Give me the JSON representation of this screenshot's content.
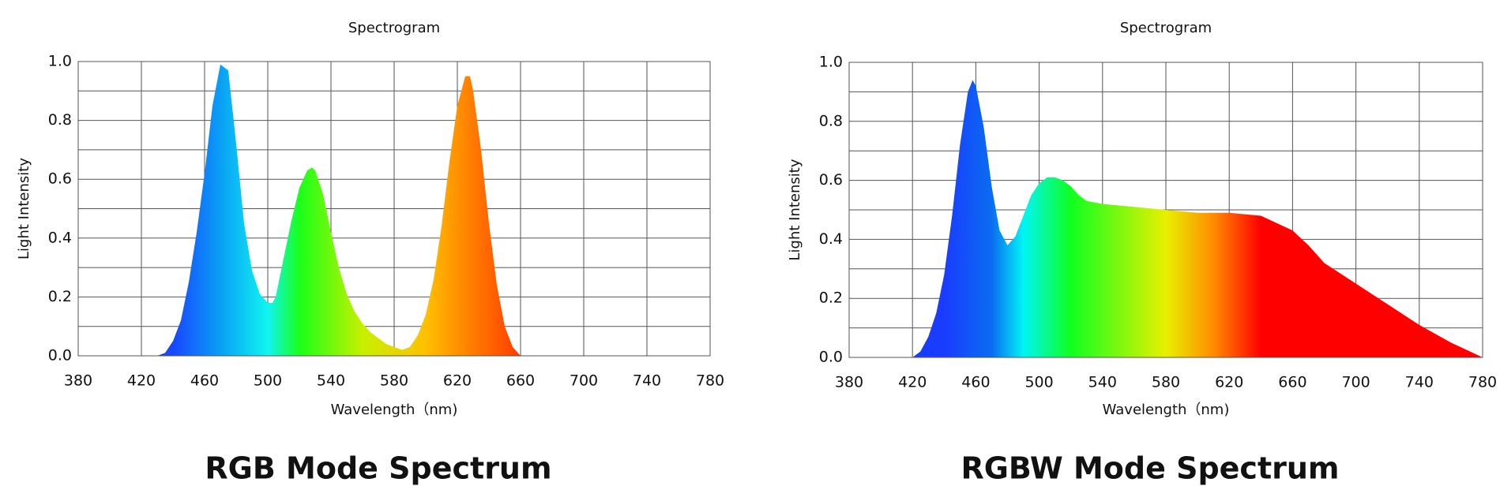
{
  "chart_data": [
    {
      "type": "area",
      "title": "Spectrogram",
      "x_label": "Wavelength（nm)",
      "y_label": "Light Intensity",
      "caption": "RGB Mode Spectrum",
      "x": [
        380,
        430,
        435,
        440,
        445,
        450,
        455,
        460,
        465,
        470,
        475,
        480,
        485,
        490,
        495,
        500,
        503,
        505,
        510,
        515,
        520,
        525,
        528,
        530,
        535,
        540,
        545,
        550,
        555,
        560,
        565,
        570,
        575,
        580,
        585,
        590,
        595,
        600,
        605,
        610,
        615,
        620,
        625,
        628,
        630,
        635,
        640,
        645,
        650,
        655,
        660
      ],
      "values": [
        0,
        0,
        0.01,
        0.05,
        0.12,
        0.25,
        0.42,
        0.62,
        0.85,
        0.99,
        0.97,
        0.72,
        0.45,
        0.29,
        0.21,
        0.18,
        0.18,
        0.2,
        0.33,
        0.46,
        0.57,
        0.63,
        0.64,
        0.63,
        0.55,
        0.42,
        0.3,
        0.21,
        0.15,
        0.11,
        0.08,
        0.06,
        0.04,
        0.03,
        0.02,
        0.03,
        0.07,
        0.14,
        0.26,
        0.44,
        0.66,
        0.85,
        0.95,
        0.95,
        0.9,
        0.7,
        0.45,
        0.24,
        0.1,
        0.03,
        0
      ],
      "gradient": [
        {
          "x": 440,
          "color": "#1747ff"
        },
        {
          "x": 470,
          "color": "#0a9ff5"
        },
        {
          "x": 500,
          "color": "#10f5f0"
        },
        {
          "x": 520,
          "color": "#1aff1a"
        },
        {
          "x": 560,
          "color": "#c8f000"
        },
        {
          "x": 600,
          "color": "#ffc000"
        },
        {
          "x": 630,
          "color": "#ff7a00"
        },
        {
          "x": 660,
          "color": "#ff3c00"
        }
      ],
      "xlim": [
        380,
        780
      ],
      "xticks": [
        380,
        420,
        460,
        500,
        540,
        580,
        620,
        660,
        700,
        740,
        780
      ],
      "ylim": [
        0,
        1
      ],
      "yticks": [
        {
          "value": 0,
          "label": "0.0"
        },
        0.2,
        0.4,
        0.6,
        0.8,
        {
          "value": 1,
          "label": "1.0"
        }
      ],
      "y_minor_ticks": [
        0.1,
        0.3,
        0.5,
        0.7,
        0.9
      ],
      "grid": true
    },
    {
      "type": "area",
      "title": "Spectrogram",
      "x_label": "Wavelength（nm)",
      "y_label": "Light Intensity",
      "caption": "RGBW Mode Spectrum",
      "x": [
        380,
        420,
        425,
        430,
        435,
        440,
        445,
        450,
        455,
        458,
        460,
        465,
        470,
        475,
        480,
        485,
        490,
        495,
        500,
        505,
        510,
        515,
        520,
        525,
        530,
        540,
        560,
        580,
        600,
        620,
        640,
        660,
        670,
        680,
        700,
        720,
        740,
        760,
        780
      ],
      "values": [
        0,
        0,
        0.02,
        0.07,
        0.15,
        0.28,
        0.48,
        0.72,
        0.9,
        0.94,
        0.92,
        0.78,
        0.58,
        0.43,
        0.38,
        0.41,
        0.48,
        0.55,
        0.59,
        0.61,
        0.61,
        0.6,
        0.58,
        0.55,
        0.53,
        0.52,
        0.51,
        0.5,
        0.49,
        0.49,
        0.48,
        0.43,
        0.38,
        0.32,
        0.25,
        0.18,
        0.11,
        0.05,
        0
      ],
      "gradient": [
        {
          "x": 440,
          "color": "#1a3cff"
        },
        {
          "x": 470,
          "color": "#0a6cf0"
        },
        {
          "x": 490,
          "color": "#00f5f5"
        },
        {
          "x": 520,
          "color": "#10ff20"
        },
        {
          "x": 580,
          "color": "#e8f000"
        },
        {
          "x": 610,
          "color": "#ff8c00"
        },
        {
          "x": 640,
          "color": "#ff0000"
        },
        {
          "x": 780,
          "color": "#ff0000"
        }
      ],
      "xlim": [
        380,
        780
      ],
      "xticks": [
        380,
        420,
        460,
        500,
        540,
        580,
        620,
        660,
        700,
        740,
        780
      ],
      "ylim": [
        0,
        1
      ],
      "yticks": [
        {
          "value": 0,
          "label": "0.0"
        },
        0.2,
        0.4,
        0.6,
        0.8,
        {
          "value": 1,
          "label": "1.0"
        }
      ],
      "y_minor_ticks": [
        0.1,
        0.3,
        0.5,
        0.7,
        0.9
      ],
      "grid": true
    }
  ]
}
